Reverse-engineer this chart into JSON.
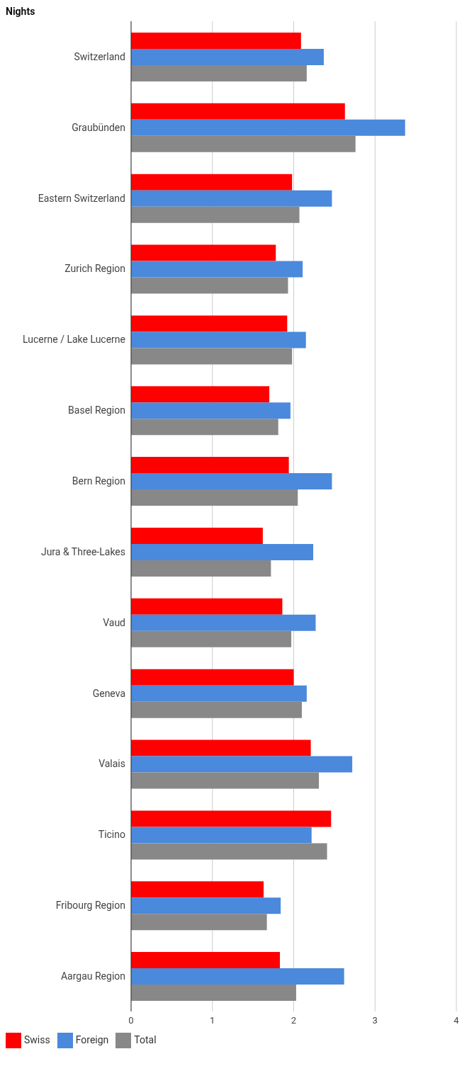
{
  "chart_data": {
    "type": "bar",
    "orientation": "horizontal",
    "title": "Nights",
    "categories": [
      "Switzerland",
      "Graubünden",
      "Eastern Switzerland",
      "Zurich Region",
      "Lucerne / Lake Lucerne",
      "Basel Region",
      "Bern Region",
      "Jura & Three-Lakes",
      "Vaud",
      "Geneva",
      "Valais",
      "Ticino",
      "Fribourg Region",
      "Aargau Region"
    ],
    "series": [
      {
        "name": "Swiss",
        "color": "#ff0000",
        "values": [
          2.09,
          2.63,
          1.98,
          1.78,
          1.92,
          1.7,
          1.94,
          1.62,
          1.86,
          2.0,
          2.21,
          2.46,
          1.63,
          1.83
        ]
      },
      {
        "name": "Foreign",
        "color": "#4a89dc",
        "values": [
          2.37,
          3.37,
          2.47,
          2.11,
          2.15,
          1.96,
          2.47,
          2.24,
          2.27,
          2.16,
          2.72,
          2.22,
          1.84,
          2.62
        ]
      },
      {
        "name": "Total",
        "color": "#888888",
        "values": [
          2.16,
          2.76,
          2.07,
          1.93,
          1.98,
          1.81,
          2.05,
          1.72,
          1.97,
          2.1,
          2.31,
          2.41,
          1.67,
          2.03
        ]
      }
    ],
    "xlim": [
      0,
      4
    ],
    "xticks": [
      0,
      1,
      2,
      3,
      4
    ],
    "grid": "x",
    "legend": "bottom left"
  }
}
